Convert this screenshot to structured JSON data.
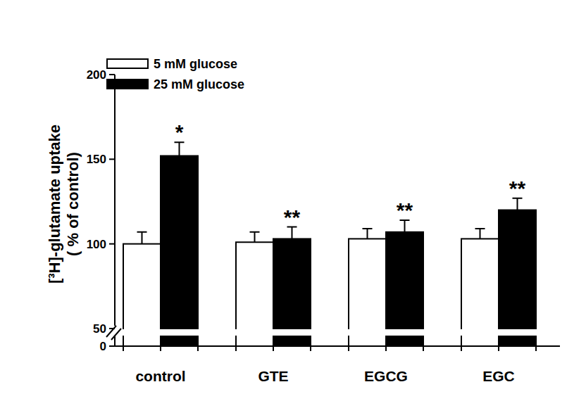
{
  "chart_data": {
    "type": "bar",
    "y_label": [
      "[³H]-glutamate uptake",
      "( % of control)"
    ],
    "categories": [
      "control",
      "GTE",
      "EGCG",
      "EGC"
    ],
    "series": [
      {
        "name": "5 mM glucose",
        "color": "#ffffff",
        "values": [
          100,
          101,
          103,
          103
        ],
        "errors": [
          7,
          6,
          6,
          6
        ]
      },
      {
        "name": "25 mM glucose",
        "color": "#000000",
        "values": [
          152,
          103,
          107,
          120
        ],
        "errors": [
          8,
          7,
          7,
          7
        ],
        "annotations": [
          "*",
          "**",
          "**",
          "**"
        ]
      }
    ],
    "ylim": [
      0,
      200
    ],
    "yticks": [
      0,
      50,
      100,
      150,
      200
    ],
    "legend": "upper left",
    "grid": false
  }
}
